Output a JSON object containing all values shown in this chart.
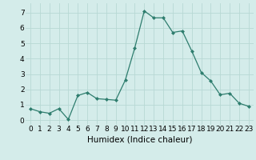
{
  "x": [
    0,
    1,
    2,
    3,
    4,
    5,
    6,
    7,
    8,
    9,
    10,
    11,
    12,
    13,
    14,
    15,
    16,
    17,
    18,
    19,
    20,
    21,
    22,
    23
  ],
  "y": [
    0.75,
    0.55,
    0.45,
    0.75,
    0.05,
    1.6,
    1.8,
    1.4,
    1.35,
    1.3,
    2.6,
    4.7,
    7.1,
    6.65,
    6.65,
    5.7,
    5.8,
    4.5,
    3.1,
    2.55,
    1.65,
    1.75,
    1.1,
    0.9
  ],
  "line_color": "#2e7d6e",
  "marker": "D",
  "marker_size": 2,
  "bg_color": "#d4ecea",
  "grid_color": "#b8d8d4",
  "xlabel": "Humidex (Indice chaleur)",
  "xlim": [
    -0.5,
    23.5
  ],
  "ylim": [
    -0.3,
    7.6
  ],
  "yticks": [
    0,
    1,
    2,
    3,
    4,
    5,
    6,
    7
  ],
  "xticks": [
    0,
    1,
    2,
    3,
    4,
    5,
    6,
    7,
    8,
    9,
    10,
    11,
    12,
    13,
    14,
    15,
    16,
    17,
    18,
    19,
    20,
    21,
    22,
    23
  ],
  "tick_fontsize": 6.5,
  "xlabel_fontsize": 7.5
}
